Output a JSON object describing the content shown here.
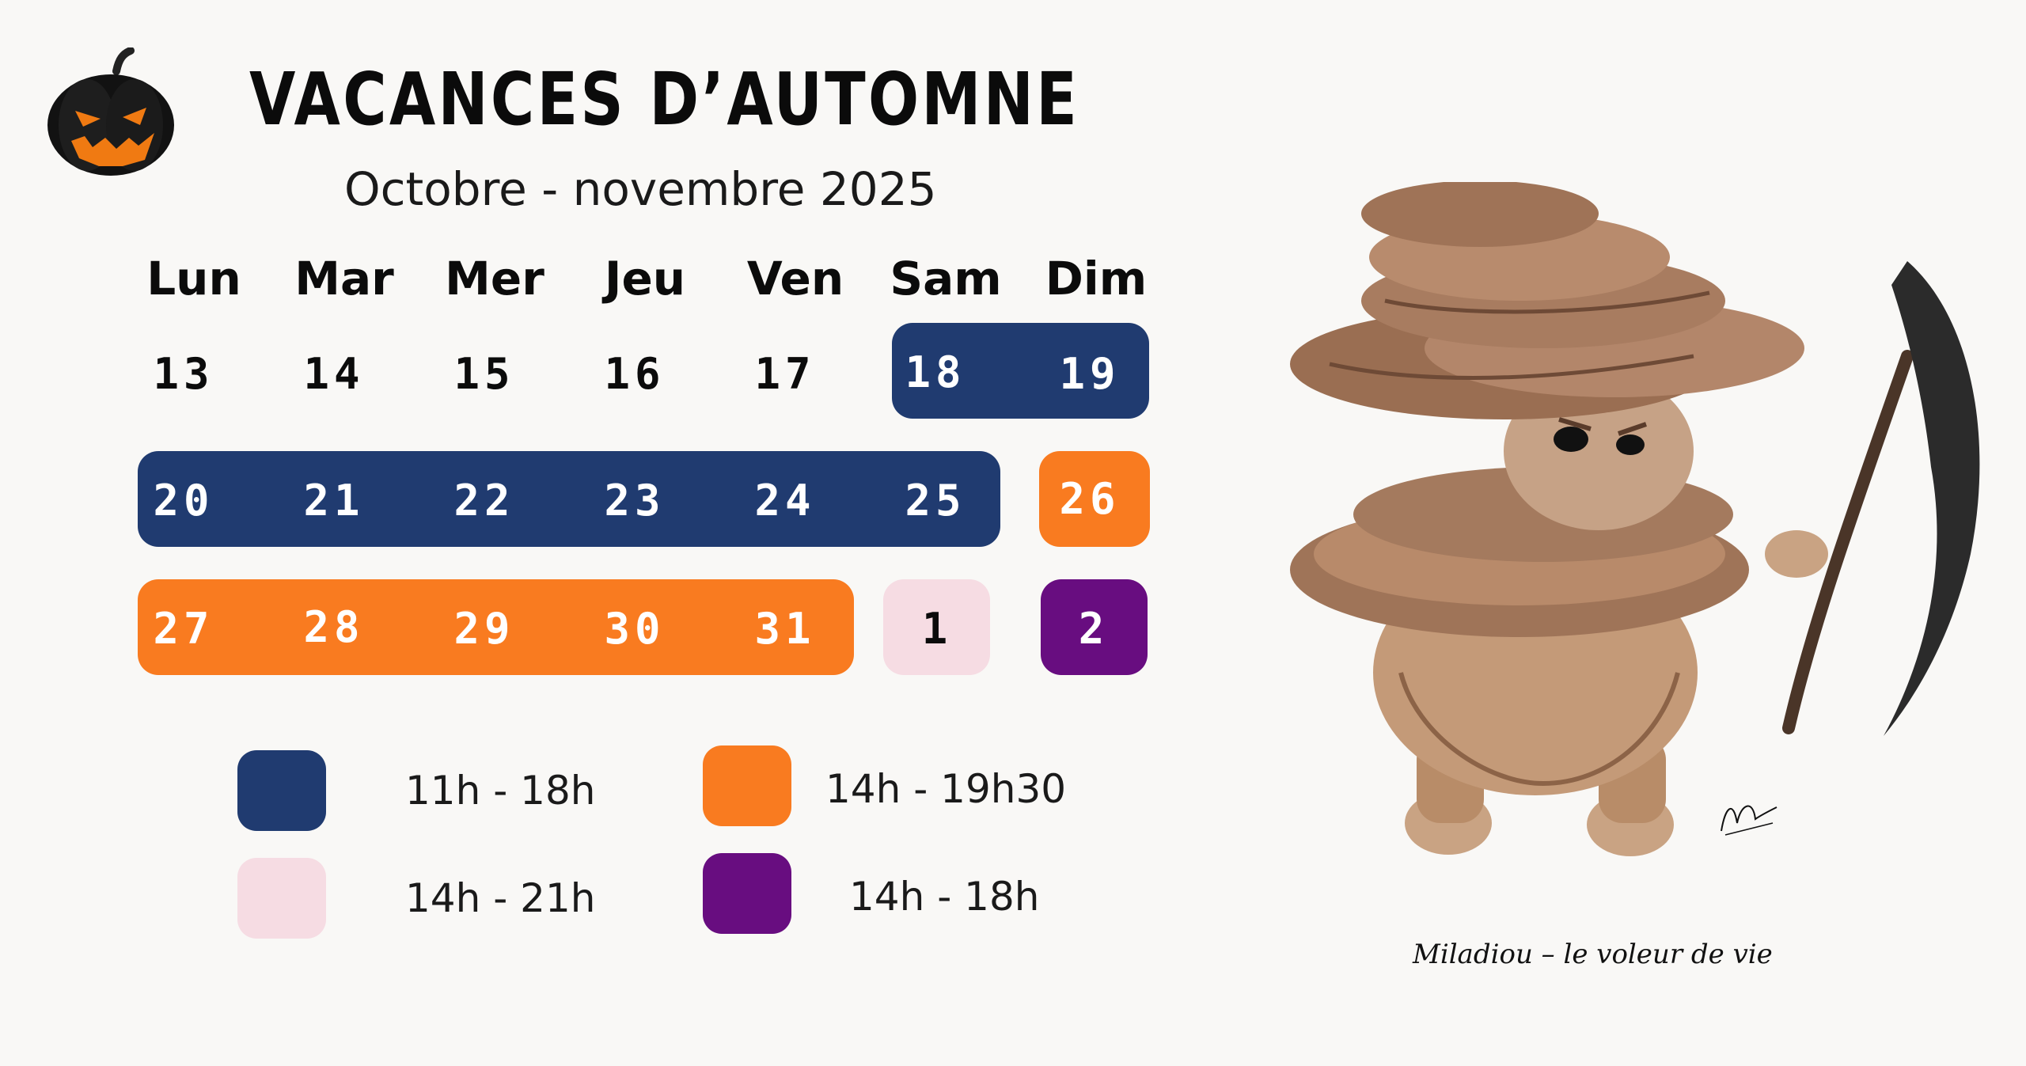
{
  "title": "VACANCES D’AUTOMNE",
  "subtitle": "Octobre - novembre 2025",
  "weekdays": [
    "Lun",
    "Mar",
    "Mer",
    "Jeu",
    "Ven",
    "Sam",
    "Dim"
  ],
  "weeks": [
    [
      "13",
      "14",
      "15",
      "16",
      "17",
      "18",
      "19"
    ],
    [
      "20",
      "21",
      "22",
      "23",
      "24",
      "25",
      "26"
    ],
    [
      "27",
      "28",
      "29",
      "30",
      "31",
      "1",
      "2"
    ]
  ],
  "colors": {
    "navy": "#203b70",
    "orange": "#f97b20",
    "pink": "#f6dce3",
    "purple": "#680d80"
  },
  "legend": [
    {
      "color": "navy",
      "hours": "11h - 18h"
    },
    {
      "color": "orange",
      "hours": "14h - 19h30"
    },
    {
      "color": "pink",
      "hours": "14h - 21h"
    },
    {
      "color": "purple",
      "hours": "14h - 18h"
    }
  ],
  "illustration": {
    "icon": "pumpkin-icon",
    "caption": "Miladiou – le voleur de vie"
  }
}
